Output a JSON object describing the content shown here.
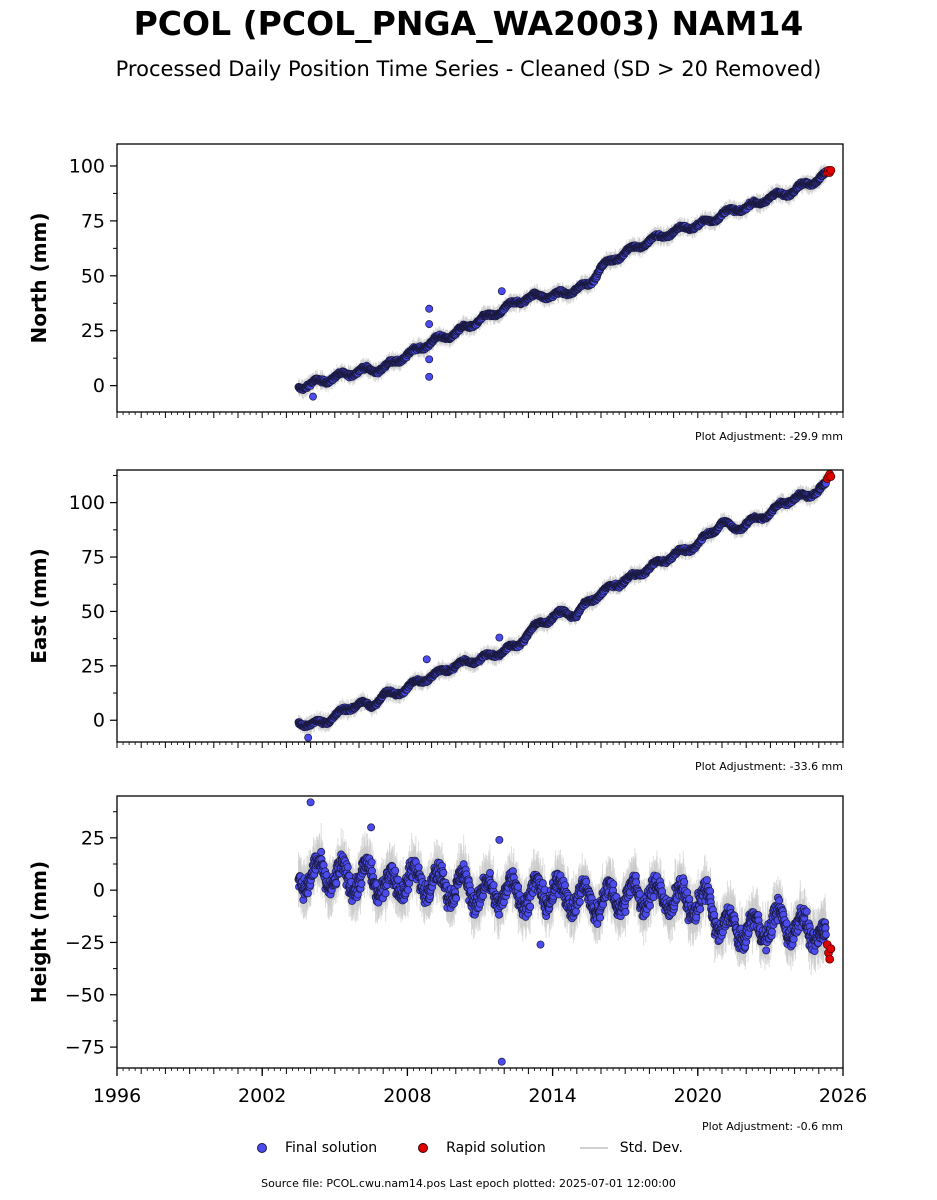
{
  "title": "PCOL (PCOL_PNGA_WA2003) NAM14",
  "subtitle": "Processed Daily Position Time Series - Cleaned (SD > 20 Removed)",
  "colors": {
    "final": "#4b4bef",
    "final_edge": "#1a1a40",
    "rapid": "#e00000",
    "stddev": "#c8c8c8"
  },
  "legend": {
    "final": "Final solution",
    "rapid": "Rapid solution",
    "stddev": "Std. Dev."
  },
  "footer": "Source file: PCOL.cwu.nam14.pos  Last epoch plotted: 2025-07-01 12:00:00",
  "chart_data": [
    {
      "type": "scatter",
      "ylabel": "North (mm)",
      "adjustment": "Plot Adjustment: -29.9 mm",
      "xlim": [
        1996,
        2026
      ],
      "ylim": [
        -12,
        110
      ],
      "yticks": [
        0,
        25,
        50,
        75,
        100
      ],
      "series": [
        {
          "name": "Final solution",
          "x": [
            2003.5,
            2004.0,
            2004.5,
            2005.0,
            2005.5,
            2006.0,
            2006.5,
            2007.0,
            2007.5,
            2008.0,
            2008.5,
            2009.0,
            2009.5,
            2010.0,
            2010.5,
            2011.0,
            2011.5,
            2012.0,
            2012.5,
            2013.0,
            2013.5,
            2014.0,
            2014.5,
            2015.0,
            2015.5,
            2016.0,
            2016.5,
            2017.0,
            2017.5,
            2018.0,
            2018.5,
            2019.0,
            2019.5,
            2020.0,
            2020.5,
            2021.0,
            2021.5,
            2022.0,
            2022.5,
            2023.0,
            2023.5,
            2024.0,
            2024.5,
            2025.0,
            2025.3
          ],
          "y": [
            -1,
            1,
            2,
            4,
            5,
            7,
            7,
            8,
            11,
            14,
            17,
            20,
            22,
            24,
            27,
            30,
            32,
            35,
            38,
            40,
            41,
            41,
            42,
            44,
            46,
            54,
            57,
            61,
            63,
            66,
            68,
            70,
            72,
            73,
            75,
            78,
            80,
            81,
            83,
            86,
            87,
            89,
            92,
            94,
            96
          ]
        },
        {
          "name": "Rapid solution",
          "x": [
            2025.35,
            2025.4,
            2025.45,
            2025.5
          ],
          "y": [
            97,
            98,
            97,
            98
          ]
        }
      ],
      "outliers": {
        "x": [
          2004.1,
          2008.9,
          2008.9,
          2008.9,
          2008.9,
          2011.9
        ],
        "y": [
          -5,
          35,
          28,
          12,
          4,
          43
        ]
      }
    },
    {
      "type": "scatter",
      "ylabel": "East (mm)",
      "adjustment": "Plot Adjustment: -33.6 mm",
      "xlim": [
        1996,
        2026
      ],
      "ylim": [
        -10,
        115
      ],
      "yticks": [
        0,
        25,
        50,
        75,
        100
      ],
      "series": [
        {
          "name": "Final solution",
          "x": [
            2003.5,
            2004.0,
            2004.5,
            2005.0,
            2005.5,
            2006.0,
            2006.5,
            2007.0,
            2007.5,
            2008.0,
            2008.5,
            2009.0,
            2009.5,
            2010.0,
            2010.5,
            2011.0,
            2011.5,
            2012.0,
            2012.5,
            2013.0,
            2013.5,
            2014.0,
            2014.5,
            2015.0,
            2015.5,
            2016.0,
            2016.5,
            2017.0,
            2017.5,
            2018.0,
            2018.5,
            2019.0,
            2019.5,
            2020.0,
            2020.5,
            2021.0,
            2021.5,
            2022.0,
            2022.5,
            2023.0,
            2023.5,
            2024.0,
            2024.5,
            2025.0,
            2025.3
          ],
          "y": [
            -1,
            -2,
            -1,
            2,
            5,
            8,
            6,
            12,
            12,
            15,
            18,
            20,
            23,
            25,
            27,
            28,
            30,
            32,
            34,
            40,
            45,
            47,
            50,
            48,
            55,
            58,
            62,
            64,
            67,
            70,
            73,
            76,
            78,
            81,
            86,
            91,
            88,
            90,
            93,
            95,
            100,
            102,
            103,
            106,
            108
          ]
        },
        {
          "name": "Rapid solution",
          "x": [
            2025.35,
            2025.4,
            2025.45,
            2025.5
          ],
          "y": [
            111,
            112,
            113,
            112
          ]
        }
      ],
      "outliers": {
        "x": [
          2003.9,
          2008.8,
          2011.8
        ],
        "y": [
          -8,
          28,
          38
        ]
      }
    },
    {
      "type": "scatter",
      "ylabel": "Height (mm)",
      "adjustment": "Plot Adjustment: -0.6 mm",
      "xlim": [
        1996,
        2026
      ],
      "ylim": [
        -85,
        45
      ],
      "yticks": [
        -75,
        -50,
        -25,
        0,
        25
      ],
      "xticks": [
        1996,
        2002,
        2008,
        2014,
        2020,
        2026
      ],
      "series": [
        {
          "name": "Final solution",
          "x": [
            2003.5,
            2004.0,
            2004.5,
            2005.0,
            2005.5,
            2006.0,
            2006.5,
            2007.0,
            2007.5,
            2008.0,
            2008.5,
            2009.0,
            2009.5,
            2010.0,
            2010.5,
            2011.0,
            2011.5,
            2012.0,
            2012.5,
            2013.0,
            2013.5,
            2014.0,
            2014.5,
            2015.0,
            2015.5,
            2016.0,
            2016.5,
            2017.0,
            2017.5,
            2018.0,
            2018.5,
            2019.0,
            2019.5,
            2020.0,
            2020.5,
            2021.0,
            2021.5,
            2022.0,
            2022.5,
            2023.0,
            2023.5,
            2024.0,
            2024.5,
            2025.0,
            2025.3
          ],
          "y": [
            8,
            5,
            10,
            4,
            8,
            3,
            9,
            0,
            5,
            4,
            6,
            2,
            4,
            0,
            3,
            -4,
            1,
            -3,
            2,
            -5,
            1,
            -3,
            0,
            -6,
            -2,
            -8,
            -1,
            -5,
            0,
            -4,
            -1,
            -6,
            -3,
            -8,
            -4,
            -20,
            -15,
            -22,
            -16,
            -19,
            -12,
            -20,
            -16,
            -22,
            -25
          ]
        },
        {
          "name": "Rapid solution",
          "x": [
            2025.35,
            2025.4,
            2025.45,
            2025.5
          ],
          "y": [
            -26,
            -30,
            -33,
            -28
          ]
        }
      ],
      "outliers": {
        "x": [
          2004.0,
          2006.5,
          2011.9,
          2011.8,
          2013.5
        ],
        "y": [
          42,
          30,
          -82,
          24,
          -26
        ]
      }
    }
  ]
}
